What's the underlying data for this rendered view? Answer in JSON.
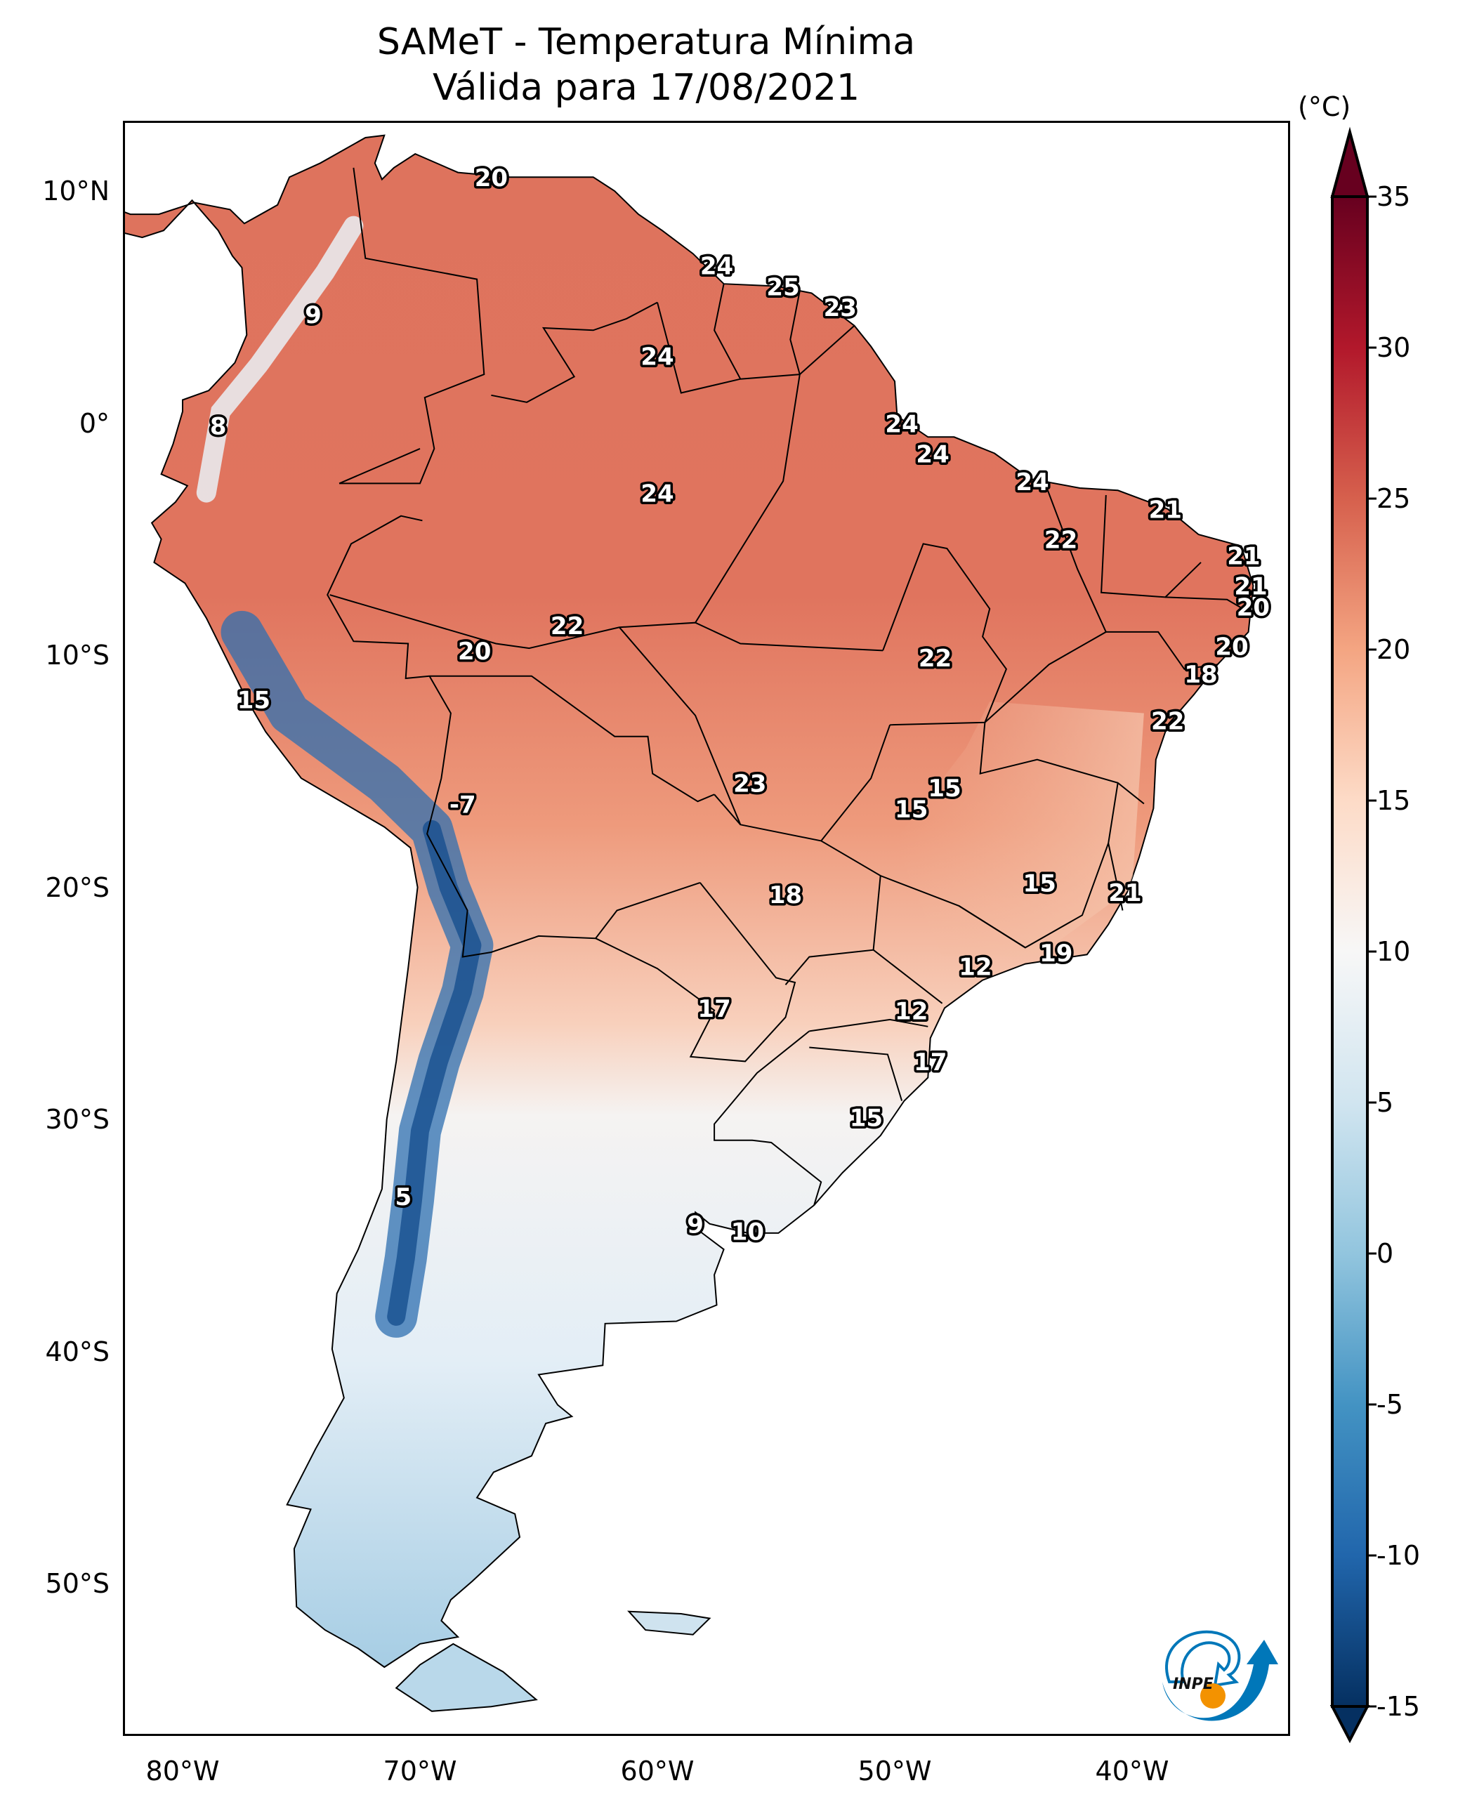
{
  "chart_data": {
    "type": "heatmap",
    "title": "SAMeT - Temperatura Mínima",
    "subtitle": "Válida para 17/08/2021",
    "variable": "Minimum temperature",
    "units": "(°C)",
    "region": "South America",
    "xlabel": "",
    "ylabel": "",
    "x_range_deg": [
      -83,
      -34
    ],
    "y_range_deg": [
      -56,
      13
    ],
    "x_ticks": [
      {
        "value": -80,
        "label": "80°W"
      },
      {
        "value": -70,
        "label": "70°W"
      },
      {
        "value": -60,
        "label": "60°W"
      },
      {
        "value": -50,
        "label": "50°W"
      },
      {
        "value": -40,
        "label": "40°W"
      }
    ],
    "y_ticks": [
      {
        "value": 10,
        "label": "10°N"
      },
      {
        "value": 0,
        "label": "0°"
      },
      {
        "value": -10,
        "label": "10°S"
      },
      {
        "value": -20,
        "label": "20°S"
      },
      {
        "value": -30,
        "label": "30°S"
      },
      {
        "value": -40,
        "label": "40°S"
      },
      {
        "value": -50,
        "label": "50°S"
      }
    ],
    "colorbar": {
      "colormap": "RdBu_r",
      "min": -15,
      "max": 35,
      "extend": "both",
      "ticks": [
        35,
        30,
        25,
        20,
        15,
        10,
        5,
        0,
        -5,
        -10,
        -15
      ],
      "tick_labels": [
        "35",
        "30",
        "25",
        "20",
        "15",
        "10",
        "5",
        "0",
        "-5",
        "-10",
        "-15"
      ],
      "stops": [
        {
          "value": -15,
          "color": "#053061"
        },
        {
          "value": -10,
          "color": "#2166ac"
        },
        {
          "value": -5,
          "color": "#4393c3"
        },
        {
          "value": 0,
          "color": "#92c5de"
        },
        {
          "value": 5,
          "color": "#d1e5f0"
        },
        {
          "value": 10,
          "color": "#f7f7f7"
        },
        {
          "value": 15,
          "color": "#fddbc7"
        },
        {
          "value": 20,
          "color": "#f4a582"
        },
        {
          "value": 25,
          "color": "#d6604d"
        },
        {
          "value": 30,
          "color": "#b2182b"
        },
        {
          "value": 35,
          "color": "#67001f"
        }
      ]
    },
    "point_labels": [
      {
        "value": "20",
        "lon": -67.0,
        "lat": 10.5
      },
      {
        "value": "9",
        "lon": -74.5,
        "lat": 4.6
      },
      {
        "value": "8",
        "lon": -78.5,
        "lat": -0.2
      },
      {
        "value": "24",
        "lon": -57.5,
        "lat": 6.7
      },
      {
        "value": "25",
        "lon": -54.7,
        "lat": 5.8
      },
      {
        "value": "23",
        "lon": -52.3,
        "lat": 4.9
      },
      {
        "value": "24",
        "lon": -60.0,
        "lat": 2.8
      },
      {
        "value": "24",
        "lon": -49.7,
        "lat": -0.1
      },
      {
        "value": "24",
        "lon": -48.4,
        "lat": -1.4
      },
      {
        "value": "24",
        "lon": -60.0,
        "lat": -3.1
      },
      {
        "value": "24",
        "lon": -44.2,
        "lat": -2.6
      },
      {
        "value": "22",
        "lon": -43.0,
        "lat": -5.1
      },
      {
        "value": "21",
        "lon": -38.6,
        "lat": -3.8
      },
      {
        "value": "21",
        "lon": -35.3,
        "lat": -5.8
      },
      {
        "value": "21",
        "lon": -35.0,
        "lat": -7.1
      },
      {
        "value": "20",
        "lon": -34.9,
        "lat": -8.0
      },
      {
        "value": "20",
        "lon": -35.8,
        "lat": -9.7
      },
      {
        "value": "18",
        "lon": -37.1,
        "lat": -10.9
      },
      {
        "value": "22",
        "lon": -38.5,
        "lat": -12.9
      },
      {
        "value": "22",
        "lon": -63.8,
        "lat": -8.8
      },
      {
        "value": "20",
        "lon": -67.7,
        "lat": -9.9
      },
      {
        "value": "22",
        "lon": -48.3,
        "lat": -10.2
      },
      {
        "value": "15",
        "lon": -77.0,
        "lat": -12.0
      },
      {
        "value": "-7",
        "lon": -68.2,
        "lat": -16.5
      },
      {
        "value": "23",
        "lon": -56.1,
        "lat": -15.6
      },
      {
        "value": "15",
        "lon": -47.9,
        "lat": -15.8
      },
      {
        "value": "15",
        "lon": -49.3,
        "lat": -16.7
      },
      {
        "value": "15",
        "lon": -43.9,
        "lat": -19.9
      },
      {
        "value": "21",
        "lon": -40.3,
        "lat": -20.3
      },
      {
        "value": "18",
        "lon": -54.6,
        "lat": -20.4
      },
      {
        "value": "19",
        "lon": -43.2,
        "lat": -22.9
      },
      {
        "value": "12",
        "lon": -46.6,
        "lat": -23.5
      },
      {
        "value": "17",
        "lon": -57.6,
        "lat": -25.3
      },
      {
        "value": "12",
        "lon": -49.3,
        "lat": -25.4
      },
      {
        "value": "17",
        "lon": -48.5,
        "lat": -27.6
      },
      {
        "value": "15",
        "lon": -51.2,
        "lat": -30.0
      },
      {
        "value": "5",
        "lon": -70.7,
        "lat": -33.4
      },
      {
        "value": "9",
        "lon": -58.4,
        "lat": -34.6
      },
      {
        "value": "10",
        "lon": -56.2,
        "lat": -34.9
      }
    ]
  },
  "logo": {
    "text": "INPE",
    "colors": {
      "blue": "#0077b9",
      "orange": "#f39200"
    }
  }
}
